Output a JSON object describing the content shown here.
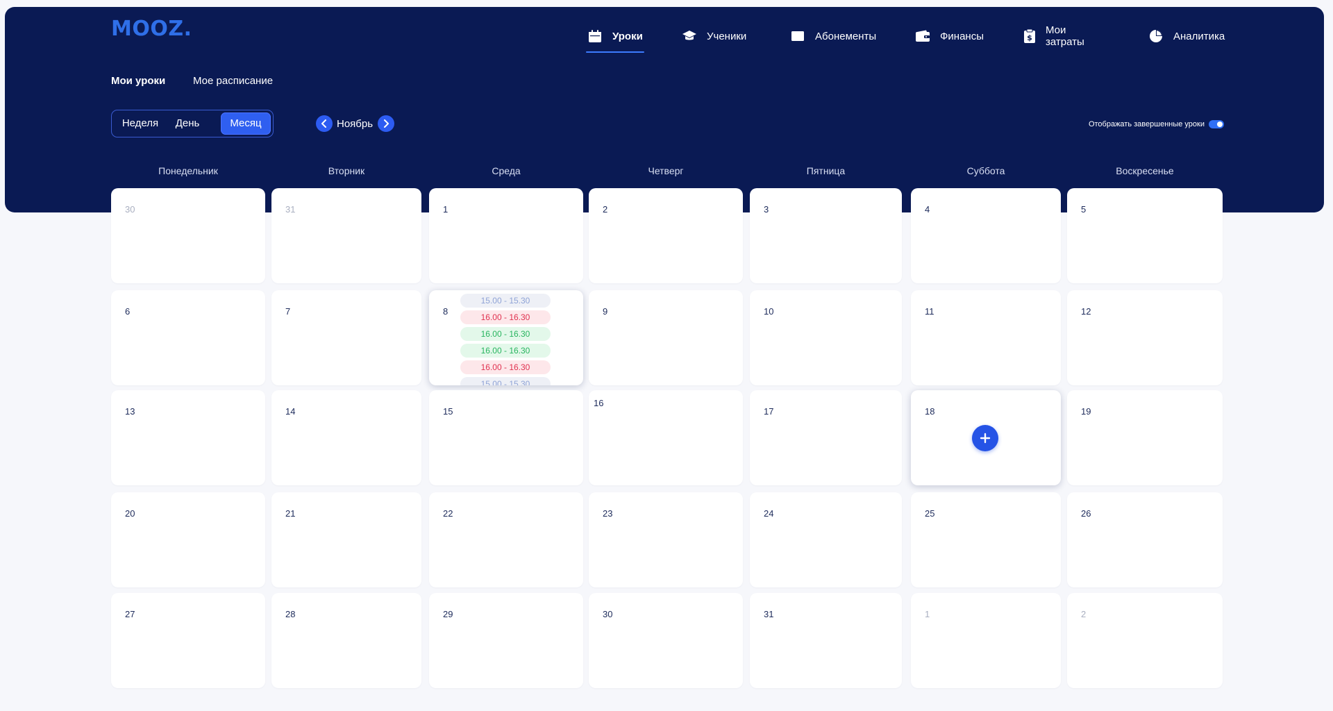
{
  "app": {
    "logo": "MOOZ."
  },
  "nav": [
    {
      "label": "Уроки",
      "icon": "calendar-icon",
      "active": true
    },
    {
      "label": "Ученики",
      "icon": "graduation-cap-icon",
      "active": false
    },
    {
      "label": "Абонементы",
      "icon": "card-icon",
      "active": false
    },
    {
      "label": "Финансы",
      "icon": "wallet-icon",
      "active": false
    },
    {
      "label": "Мои затраты",
      "icon": "receipt-icon",
      "active": false
    },
    {
      "label": "Аналитика",
      "icon": "pie-chart-icon",
      "active": false
    }
  ],
  "subtabs": [
    {
      "label": "Мои уроки",
      "active": true
    },
    {
      "label": "Мое расписание",
      "active": false
    }
  ],
  "view_modes": [
    {
      "label": "Неделя",
      "active": false
    },
    {
      "label": "День",
      "active": false
    },
    {
      "label": "Месяц",
      "active": true
    }
  ],
  "month_nav": {
    "label": "Ноябрь",
    "prev_icon": "chevron-left-icon",
    "next_icon": "chevron-right-icon"
  },
  "show_completed": {
    "label": "Отображать завершенные уроки",
    "enabled": true
  },
  "weekdays": [
    "Понедельник",
    "Вторник",
    "Среда",
    "Четверг",
    "Пятница",
    "Суббота",
    "Воскресенье"
  ],
  "calendar": {
    "weeks": [
      [
        {
          "day": "30",
          "muted": true
        },
        {
          "day": "31",
          "muted": true
        },
        {
          "day": "1"
        },
        {
          "day": "2"
        },
        {
          "day": "3"
        },
        {
          "day": "4"
        },
        {
          "day": "5"
        }
      ],
      [
        {
          "day": "6"
        },
        {
          "day": "7"
        },
        {
          "day": "8",
          "lessons": [
            {
              "time": "15.00 - 15.30",
              "status": "gray"
            },
            {
              "time": "16.00 - 16.30",
              "status": "red"
            },
            {
              "time": "16.00 - 16.30",
              "status": "green"
            },
            {
              "time": "16.00 - 16.30",
              "status": "green"
            },
            {
              "time": "16.00 - 16.30",
              "status": "red"
            },
            {
              "time": "15.00 - 15.30",
              "status": "gray"
            }
          ]
        },
        {
          "day": "9"
        },
        {
          "day": "10"
        },
        {
          "day": "11"
        },
        {
          "day": "12"
        }
      ],
      [
        {
          "day": "13"
        },
        {
          "day": "14"
        },
        {
          "day": "15"
        },
        {
          "day": "16"
        },
        {
          "day": "17"
        },
        {
          "day": "18",
          "add": true
        },
        {
          "day": "19"
        }
      ],
      [
        {
          "day": "20"
        },
        {
          "day": "21"
        },
        {
          "day": "22"
        },
        {
          "day": "23"
        },
        {
          "day": "24"
        },
        {
          "day": "25"
        },
        {
          "day": "26"
        }
      ],
      [
        {
          "day": "27"
        },
        {
          "day": "28"
        },
        {
          "day": "29"
        },
        {
          "day": "30"
        },
        {
          "day": "31"
        },
        {
          "day": "1",
          "muted": true
        },
        {
          "day": "2",
          "muted": true
        }
      ]
    ]
  },
  "add_lesson_icon": "plus-icon"
}
